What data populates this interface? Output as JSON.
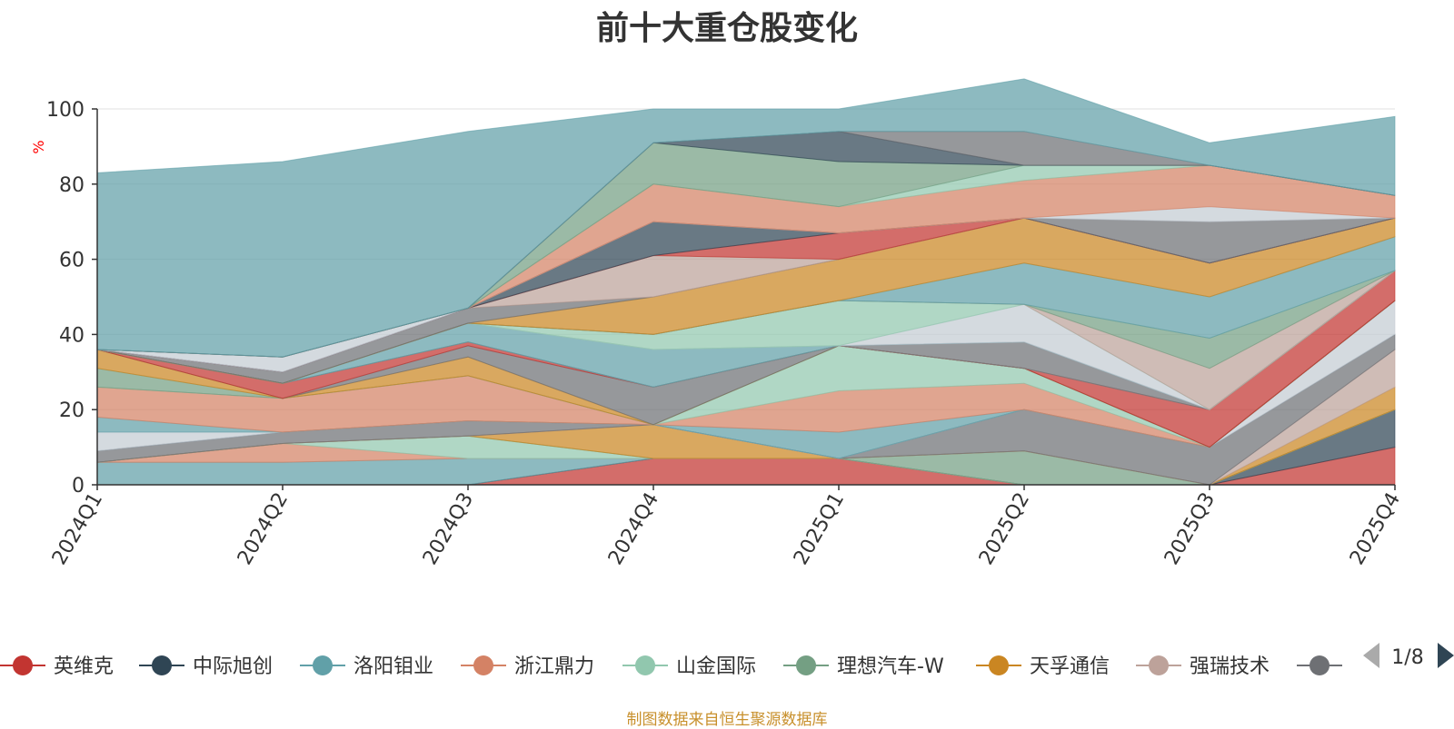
{
  "title": "前十大重仓股变化",
  "footer": {
    "text": "制图数据来自恒生聚源数据库",
    "color": "#c8902c"
  },
  "legend": {
    "items": [
      "英维克",
      "中际旭创",
      "洛阳钼业",
      "浙江鼎力",
      "山金国际",
      "理想汽车-W",
      "天孚通信",
      "强瑞技术",
      ""
    ],
    "page": "1/8"
  },
  "chart_data": {
    "type": "area",
    "stacked": true,
    "x": [
      "2024Q1",
      "2024Q2",
      "2024Q3",
      "2024Q4",
      "2025Q1",
      "2025Q2",
      "2025Q3",
      "2025Q4"
    ],
    "ylabel": "%",
    "ylim": [
      0,
      100
    ],
    "yticks": [
      0,
      20,
      40,
      60,
      80,
      100
    ],
    "grid": true,
    "legend_position": "bottom",
    "series": [
      {
        "name": "英维克",
        "color": "#c23531",
        "values": [
          0,
          0,
          0,
          7,
          7,
          0,
          0,
          10
        ]
      },
      {
        "name": "中际旭创",
        "color": "#2f4554",
        "values": [
          0,
          0,
          0,
          0,
          0,
          0,
          0,
          10
        ]
      },
      {
        "name": "洛阳钼业",
        "color": "#61a0a8",
        "values": [
          6,
          6,
          7,
          0,
          0,
          0,
          0,
          0
        ]
      },
      {
        "name": "浙江鼎力",
        "color": "#d48265",
        "values": [
          0,
          5,
          0,
          0,
          0,
          0,
          0,
          0
        ]
      },
      {
        "name": "山金国际",
        "color": "#91c7ae",
        "values": [
          0,
          0,
          6,
          0,
          0,
          0,
          0,
          0
        ]
      },
      {
        "name": "理想汽车-W",
        "color": "#749f83",
        "values": [
          0,
          0,
          0,
          0,
          0,
          9,
          0,
          0
        ]
      },
      {
        "name": "天孚通信",
        "color": "#ca8622",
        "values": [
          0,
          0,
          0,
          9,
          0,
          0,
          0,
          6
        ]
      },
      {
        "name": "强瑞技术",
        "color": "#bda29a",
        "values": [
          0,
          0,
          0,
          0,
          0,
          0,
          0,
          10
        ]
      },
      {
        "name": "",
        "color": "#6e7074",
        "values": [
          3,
          3,
          4,
          0,
          0,
          11,
          10,
          4
        ]
      },
      {
        "name": "",
        "color": "#546570",
        "values": [
          0,
          0,
          0,
          0,
          0,
          0,
          0,
          0
        ]
      },
      {
        "name": "",
        "color": "#c4ccd3",
        "values": [
          5,
          0,
          0,
          0,
          0,
          0,
          0,
          9
        ]
      },
      {
        "name": "",
        "color": "#61a0a8",
        "values": [
          4,
          0,
          0,
          0,
          7,
          0,
          0,
          0
        ]
      },
      {
        "name": "",
        "color": "#d48265",
        "values": [
          8,
          9,
          12,
          0,
          11,
          7,
          0,
          0
        ]
      },
      {
        "name": "",
        "color": "#91c7ae",
        "values": [
          0,
          0,
          0,
          0,
          12,
          4,
          0,
          0
        ]
      },
      {
        "name": "",
        "color": "#749f83",
        "values": [
          5,
          0,
          0,
          0,
          0,
          0,
          0,
          0
        ]
      },
      {
        "name": "",
        "color": "#ca8622",
        "values": [
          5,
          0,
          5,
          0,
          0,
          0,
          0,
          0
        ]
      },
      {
        "name": "",
        "color": "#6e7074",
        "values": [
          0,
          0,
          3,
          10,
          0,
          0,
          0,
          0
        ]
      },
      {
        "name": "",
        "color": "#c23531",
        "values": [
          0,
          4,
          1,
          0,
          0,
          0,
          10,
          8
        ]
      },
      {
        "name": "",
        "color": "#bda29a",
        "values": [
          0,
          0,
          0,
          0,
          0,
          0,
          0,
          0
        ]
      },
      {
        "name": "",
        "color": "#6e7074",
        "values": [
          0,
          0,
          0,
          0,
          0,
          7,
          0,
          0
        ]
      },
      {
        "name": "",
        "color": "#61a0a8",
        "values": [
          0,
          0,
          5,
          10,
          0,
          0,
          0,
          0
        ]
      },
      {
        "name": "",
        "color": "#c4ccd3",
        "values": [
          0,
          0,
          0,
          0,
          0,
          10,
          0,
          0
        ]
      },
      {
        "name": "",
        "color": "#91c7ae",
        "values": [
          0,
          0,
          0,
          4,
          12,
          0,
          0,
          0
        ]
      },
      {
        "name": "",
        "color": "#bda29a",
        "values": [
          0,
          0,
          0,
          0,
          0,
          0,
          11,
          0
        ]
      },
      {
        "name": "",
        "color": "#749f83",
        "values": [
          0,
          0,
          0,
          0,
          0,
          0,
          8,
          0
        ]
      },
      {
        "name": "",
        "color": "#61a0a8",
        "values": [
          0,
          0,
          0,
          0,
          0,
          11,
          11,
          9
        ]
      },
      {
        "name": "",
        "color": "#ca8622",
        "values": [
          0,
          0,
          0,
          10,
          11,
          12,
          9,
          5
        ]
      },
      {
        "name": "",
        "color": "#6e7074",
        "values": [
          0,
          3,
          4,
          0,
          0,
          0,
          0,
          0
        ]
      },
      {
        "name": "",
        "color": "#bda29a",
        "values": [
          0,
          0,
          0,
          11,
          0,
          0,
          0,
          0
        ]
      },
      {
        "name": "",
        "color": "#c23531",
        "values": [
          0,
          0,
          0,
          0,
          7,
          0,
          0,
          0
        ]
      },
      {
        "name": "",
        "color": "#2f4554",
        "values": [
          0,
          0,
          0,
          9,
          0,
          0,
          0,
          0
        ]
      },
      {
        "name": "",
        "color": "#6e7074",
        "values": [
          0,
          0,
          0,
          0,
          0,
          0,
          11,
          0
        ]
      },
      {
        "name": "",
        "color": "#c4ccd3",
        "values": [
          0,
          4,
          0,
          0,
          0,
          0,
          4,
          0
        ]
      },
      {
        "name": "",
        "color": "#d48265",
        "values": [
          0,
          0,
          0,
          10,
          7,
          10,
          11,
          6
        ]
      },
      {
        "name": "",
        "color": "#91c7ae",
        "values": [
          0,
          0,
          0,
          0,
          0,
          4,
          0,
          0
        ]
      },
      {
        "name": "",
        "color": "#749f83",
        "values": [
          0,
          0,
          0,
          11,
          12,
          0,
          0,
          0
        ]
      },
      {
        "name": "",
        "color": "#2f4554",
        "values": [
          0,
          0,
          0,
          0,
          8,
          0,
          0,
          0
        ]
      },
      {
        "name": "",
        "color": "#6e7074",
        "values": [
          0,
          0,
          0,
          0,
          0,
          9,
          0,
          0
        ]
      },
      {
        "name": "",
        "color": "#61a0a8",
        "values": [
          47,
          52,
          47,
          9,
          6,
          14,
          6,
          21
        ]
      }
    ]
  }
}
